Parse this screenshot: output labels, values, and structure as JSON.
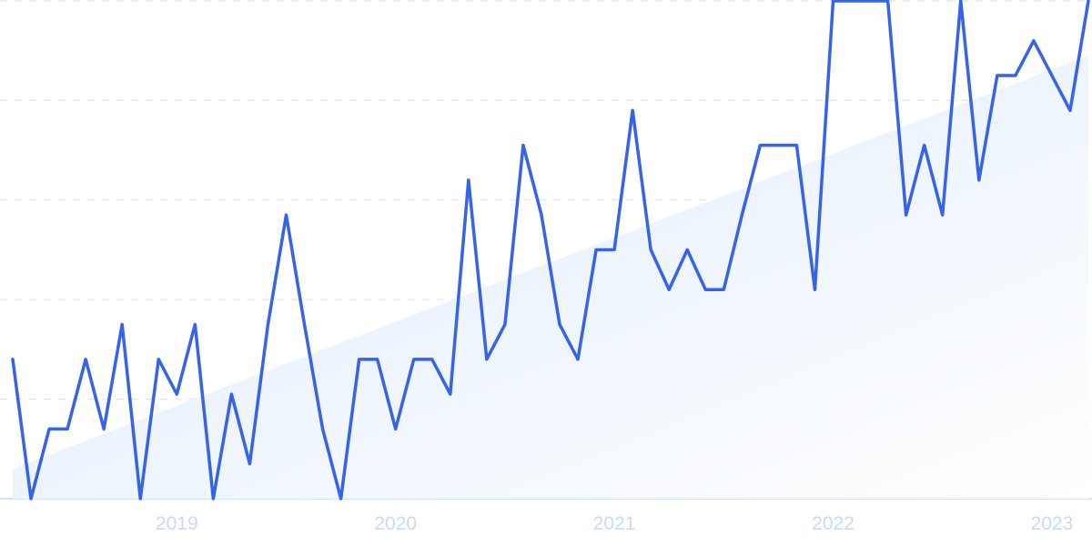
{
  "chart_data": {
    "type": "line",
    "title": "",
    "xlabel": "",
    "ylabel": "",
    "ylim": [
      0,
      100
    ],
    "grid": true,
    "x_start": "2018-04",
    "x_interval": "month",
    "x_tick_labels": [
      "2019",
      "2020",
      "2021",
      "2022",
      "2023"
    ],
    "series": [
      {
        "values": [
          28,
          0,
          14,
          14,
          28,
          14,
          35,
          0,
          28,
          21,
          35,
          0,
          21,
          7,
          35,
          57,
          35,
          14,
          0,
          28,
          28,
          14,
          28,
          28,
          21,
          64,
          28,
          35,
          71,
          57,
          35,
          28,
          50,
          50,
          78,
          50,
          42,
          50,
          42,
          42,
          57,
          71,
          71,
          71,
          42,
          100,
          100,
          100,
          100,
          57,
          71,
          57,
          100,
          64,
          85,
          85,
          92,
          85,
          78,
          100
        ],
        "color": "#3563e9"
      }
    ],
    "trend": {
      "start": 6,
      "end": 89,
      "color": "#dbe9fb"
    }
  }
}
